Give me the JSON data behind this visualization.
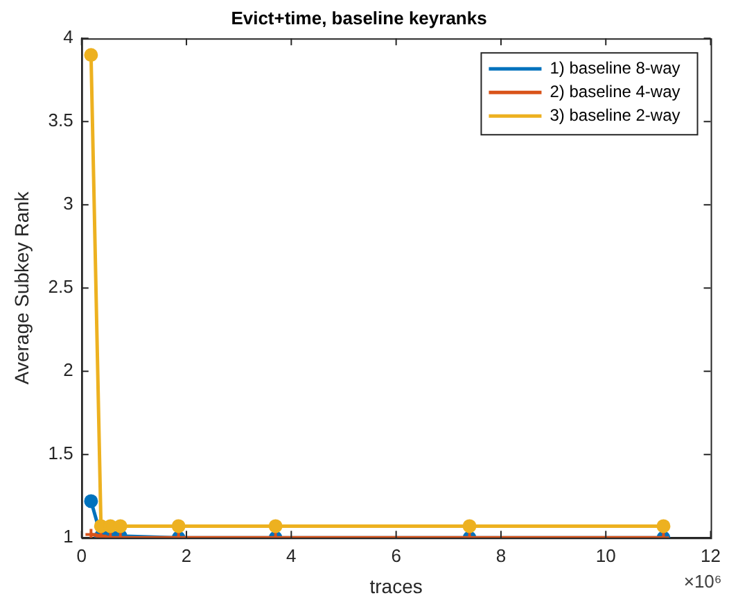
{
  "chart_data": {
    "type": "line",
    "title": "Evict+time, baseline keyranks",
    "xlabel": "traces",
    "ylabel": "Average Subkey Rank",
    "x": [
      0.18,
      0.37,
      0.55,
      0.74,
      1.85,
      3.7,
      7.4,
      11.1
    ],
    "series": [
      {
        "name": "1) baseline 8-way",
        "color": "#0072bd",
        "marker": "circle",
        "values": [
          1.22,
          1.01,
          1.01,
          1.01,
          1.0,
          1.0,
          1.0,
          1.0
        ]
      },
      {
        "name": "2) baseline 4-way",
        "color": "#d95319",
        "marker": "cross",
        "values": [
          1.02,
          1.01,
          1.0,
          1.0,
          1.0,
          1.0,
          1.0,
          1.0
        ]
      },
      {
        "name": "3) baseline 2-way",
        "color": "#edb120",
        "marker": "circle",
        "values": [
          3.9,
          1.07,
          1.07,
          1.07,
          1.07,
          1.07,
          1.07,
          1.07
        ]
      }
    ],
    "xlim": [
      0,
      12
    ],
    "xticks": [
      0,
      2,
      4,
      6,
      8,
      10,
      12
    ],
    "ylim": [
      1,
      4
    ],
    "yticks": [
      1,
      1.5,
      2,
      2.5,
      3,
      3.5,
      4
    ],
    "grid": false,
    "legend": "top right",
    "line_style": "solid",
    "annotations": [
      "×10⁶"
    ]
  }
}
